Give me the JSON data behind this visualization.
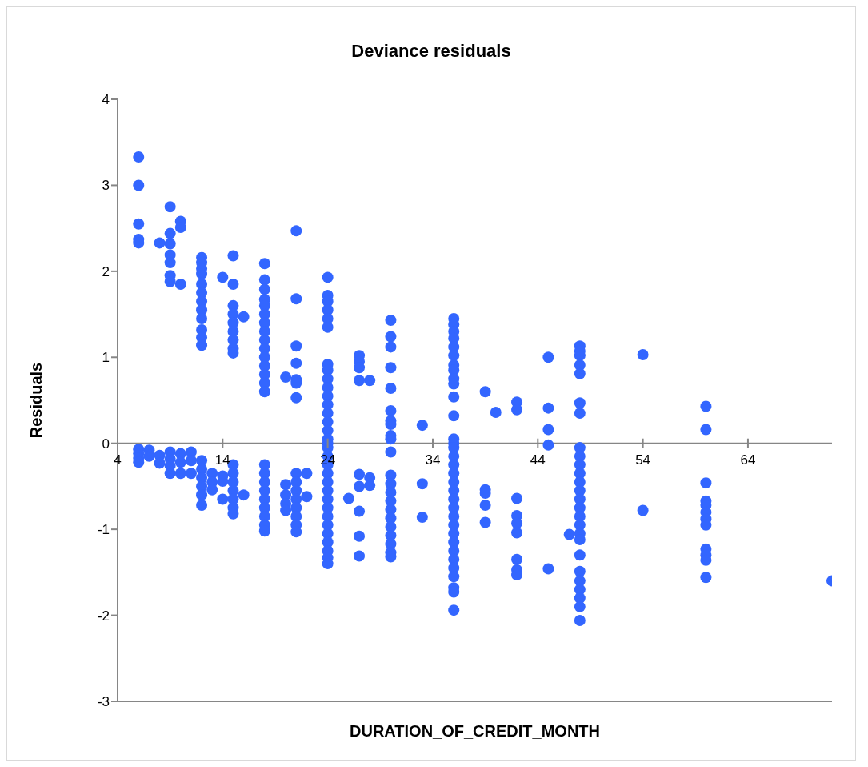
{
  "chart_data": {
    "type": "scatter",
    "title": "Deviance residuals",
    "xlabel": "DURATION_OF_CREDIT_MONTH",
    "ylabel": "Residuals",
    "xlim": [
      4,
      72
    ],
    "xticks": [
      4,
      14,
      24,
      34,
      44,
      54,
      64
    ],
    "ylim": [
      -3,
      4
    ],
    "yticks": [
      -3,
      -2,
      -1,
      0,
      1,
      2,
      3,
      4
    ],
    "marker": "circle",
    "series": [
      {
        "color": "#3366ff",
        "x": [
          6,
          6,
          6,
          6,
          6,
          6,
          6,
          6,
          6,
          7,
          7,
          8,
          8,
          8,
          9,
          9,
          9,
          9,
          9,
          9,
          9,
          9,
          9,
          9,
          9,
          10,
          10,
          10,
          10,
          10,
          10,
          11,
          11,
          11,
          12,
          12,
          12,
          12,
          12,
          12,
          12,
          12,
          12,
          12,
          12,
          12,
          12,
          12,
          12,
          12,
          12,
          12,
          13,
          13,
          13,
          14,
          14,
          14,
          14,
          15,
          15,
          15,
          15,
          15,
          15,
          15,
          15,
          15,
          15,
          15,
          15,
          15,
          15,
          15,
          15,
          16,
          16,
          18,
          18,
          18,
          18,
          18,
          18,
          18,
          18,
          18,
          18,
          18,
          18,
          18,
          18,
          18,
          18,
          18,
          18,
          18,
          18,
          18,
          18,
          18,
          18,
          20,
          20,
          20,
          20,
          20,
          21,
          21,
          21,
          21,
          21,
          21,
          21,
          21,
          21,
          21,
          21,
          21,
          21,
          21,
          21,
          22,
          22,
          24,
          24,
          24,
          24,
          24,
          24,
          24,
          24,
          24,
          24,
          24,
          24,
          24,
          24,
          24,
          24,
          24,
          24,
          24,
          24,
          24,
          24,
          24,
          24,
          24,
          24,
          24,
          24,
          24,
          24,
          24,
          24,
          26,
          27,
          27,
          27,
          27,
          27,
          27,
          27,
          27,
          27,
          28,
          28,
          28,
          30,
          30,
          30,
          30,
          30,
          30,
          30,
          30,
          30,
          30,
          30,
          30,
          30,
          30,
          30,
          30,
          30,
          30,
          30,
          30,
          30,
          30,
          33,
          33,
          33,
          36,
          36,
          36,
          36,
          36,
          36,
          36,
          36,
          36,
          36,
          36,
          36,
          36,
          36,
          36,
          36,
          36,
          36,
          36,
          36,
          36,
          36,
          36,
          36,
          36,
          36,
          36,
          36,
          36,
          36,
          36,
          36,
          36,
          39,
          39,
          39,
          39,
          39,
          40,
          42,
          42,
          42,
          42,
          42,
          42,
          42,
          42,
          42,
          45,
          45,
          45,
          45,
          45,
          47,
          48,
          48,
          48,
          48,
          48,
          48,
          48,
          48,
          48,
          48,
          48,
          48,
          48,
          48,
          48,
          48,
          48,
          48,
          48,
          48,
          48,
          48,
          48,
          48,
          48,
          48,
          54,
          54,
          60,
          60,
          60,
          60,
          60,
          60,
          60,
          60,
          60,
          60,
          60,
          60,
          72
        ],
        "values": [
          3.33,
          3.0,
          2.55,
          2.37,
          2.33,
          -0.07,
          -0.12,
          -0.17,
          -0.22,
          -0.08,
          -0.15,
          2.33,
          -0.14,
          -0.23,
          2.75,
          2.44,
          2.32,
          2.19,
          2.1,
          1.95,
          1.88,
          -0.1,
          -0.18,
          -0.26,
          -0.35,
          2.58,
          2.51,
          1.85,
          -0.12,
          -0.22,
          -0.35,
          -0.1,
          -0.2,
          -0.35,
          2.16,
          2.1,
          2.03,
          1.97,
          1.85,
          1.75,
          1.65,
          1.55,
          1.45,
          1.32,
          1.23,
          1.14,
          -0.2,
          -0.3,
          -0.4,
          -0.5,
          -0.6,
          -0.72,
          -0.35,
          -0.45,
          -0.54,
          1.93,
          -0.38,
          -0.44,
          -0.65,
          2.18,
          1.85,
          1.6,
          1.5,
          1.4,
          1.3,
          1.2,
          1.1,
          1.05,
          -0.25,
          -0.35,
          -0.45,
          -0.55,
          -0.65,
          -0.75,
          -0.82,
          1.47,
          -0.6,
          2.09,
          1.9,
          1.79,
          1.67,
          1.6,
          1.5,
          1.4,
          1.3,
          1.2,
          1.1,
          1.0,
          0.9,
          0.8,
          0.7,
          0.6,
          -0.25,
          -0.35,
          -0.45,
          -0.55,
          -0.65,
          -0.75,
          -0.85,
          -0.95,
          -1.02,
          0.77,
          -0.48,
          -0.6,
          -0.7,
          -0.78,
          2.47,
          1.68,
          1.13,
          0.93,
          0.74,
          0.7,
          0.53,
          -0.35,
          -0.45,
          -0.55,
          -0.65,
          -0.75,
          -0.85,
          -0.95,
          -1.03,
          -0.35,
          -0.62,
          1.93,
          1.72,
          1.65,
          1.55,
          1.45,
          1.35,
          0.92,
          0.85,
          0.75,
          0.65,
          0.55,
          0.45,
          0.35,
          0.25,
          0.15,
          0.05,
          0,
          -0.05,
          -0.15,
          -0.25,
          -0.35,
          -0.45,
          -0.55,
          -0.65,
          -0.75,
          -0.85,
          -0.95,
          -1.05,
          -1.15,
          -1.25,
          -1.33,
          -1.4,
          -0.64,
          1.02,
          0.95,
          0.88,
          0.73,
          -0.36,
          -0.5,
          -0.79,
          -1.08,
          -1.31,
          0.73,
          -0.4,
          -0.49,
          1.43,
          1.24,
          1.12,
          0.88,
          0.64,
          0.38,
          0.26,
          0.22,
          0.09,
          0.05,
          -0.1,
          -0.37,
          -0.47,
          -0.57,
          -0.67,
          -0.77,
          -0.87,
          -0.97,
          -1.07,
          -1.17,
          -1.27,
          -1.32,
          0.21,
          -0.47,
          -0.86,
          1.45,
          1.38,
          1.3,
          1.22,
          1.12,
          1.02,
          0.91,
          0.85,
          0.75,
          0.69,
          0.54,
          0.32,
          0.05,
          0,
          -0.05,
          -0.15,
          -0.25,
          -0.35,
          -0.45,
          -0.55,
          -0.65,
          -0.75,
          -0.85,
          -0.95,
          -1.05,
          -1.15,
          -1.25,
          -1.35,
          -1.45,
          -1.55,
          -1.68,
          -1.73,
          -1.94,
          0.6,
          -0.54,
          -0.58,
          -0.72,
          -0.92,
          0.36,
          0.48,
          0.39,
          -0.64,
          -0.84,
          -0.93,
          -1.04,
          -1.35,
          -1.47,
          -1.53,
          1.0,
          0.41,
          0.16,
          -0.02,
          -1.46,
          -1.06,
          1.13,
          1.07,
          1.02,
          0.91,
          0.81,
          0.47,
          0.35,
          -0.05,
          -0.15,
          -0.25,
          -0.35,
          -0.45,
          -0.55,
          -0.65,
          -0.75,
          -0.85,
          -0.95,
          -1.05,
          -1.12,
          -1.3,
          -1.49,
          -1.6,
          -1.7,
          -1.8,
          -1.9,
          -2.06,
          1.03,
          -0.78,
          0.43,
          0.16,
          -0.46,
          -0.67,
          -0.72,
          -0.8,
          -0.88,
          -0.95,
          -1.23,
          -1.3,
          -1.36,
          -1.56,
          -1.6
        ]
      }
    ]
  }
}
